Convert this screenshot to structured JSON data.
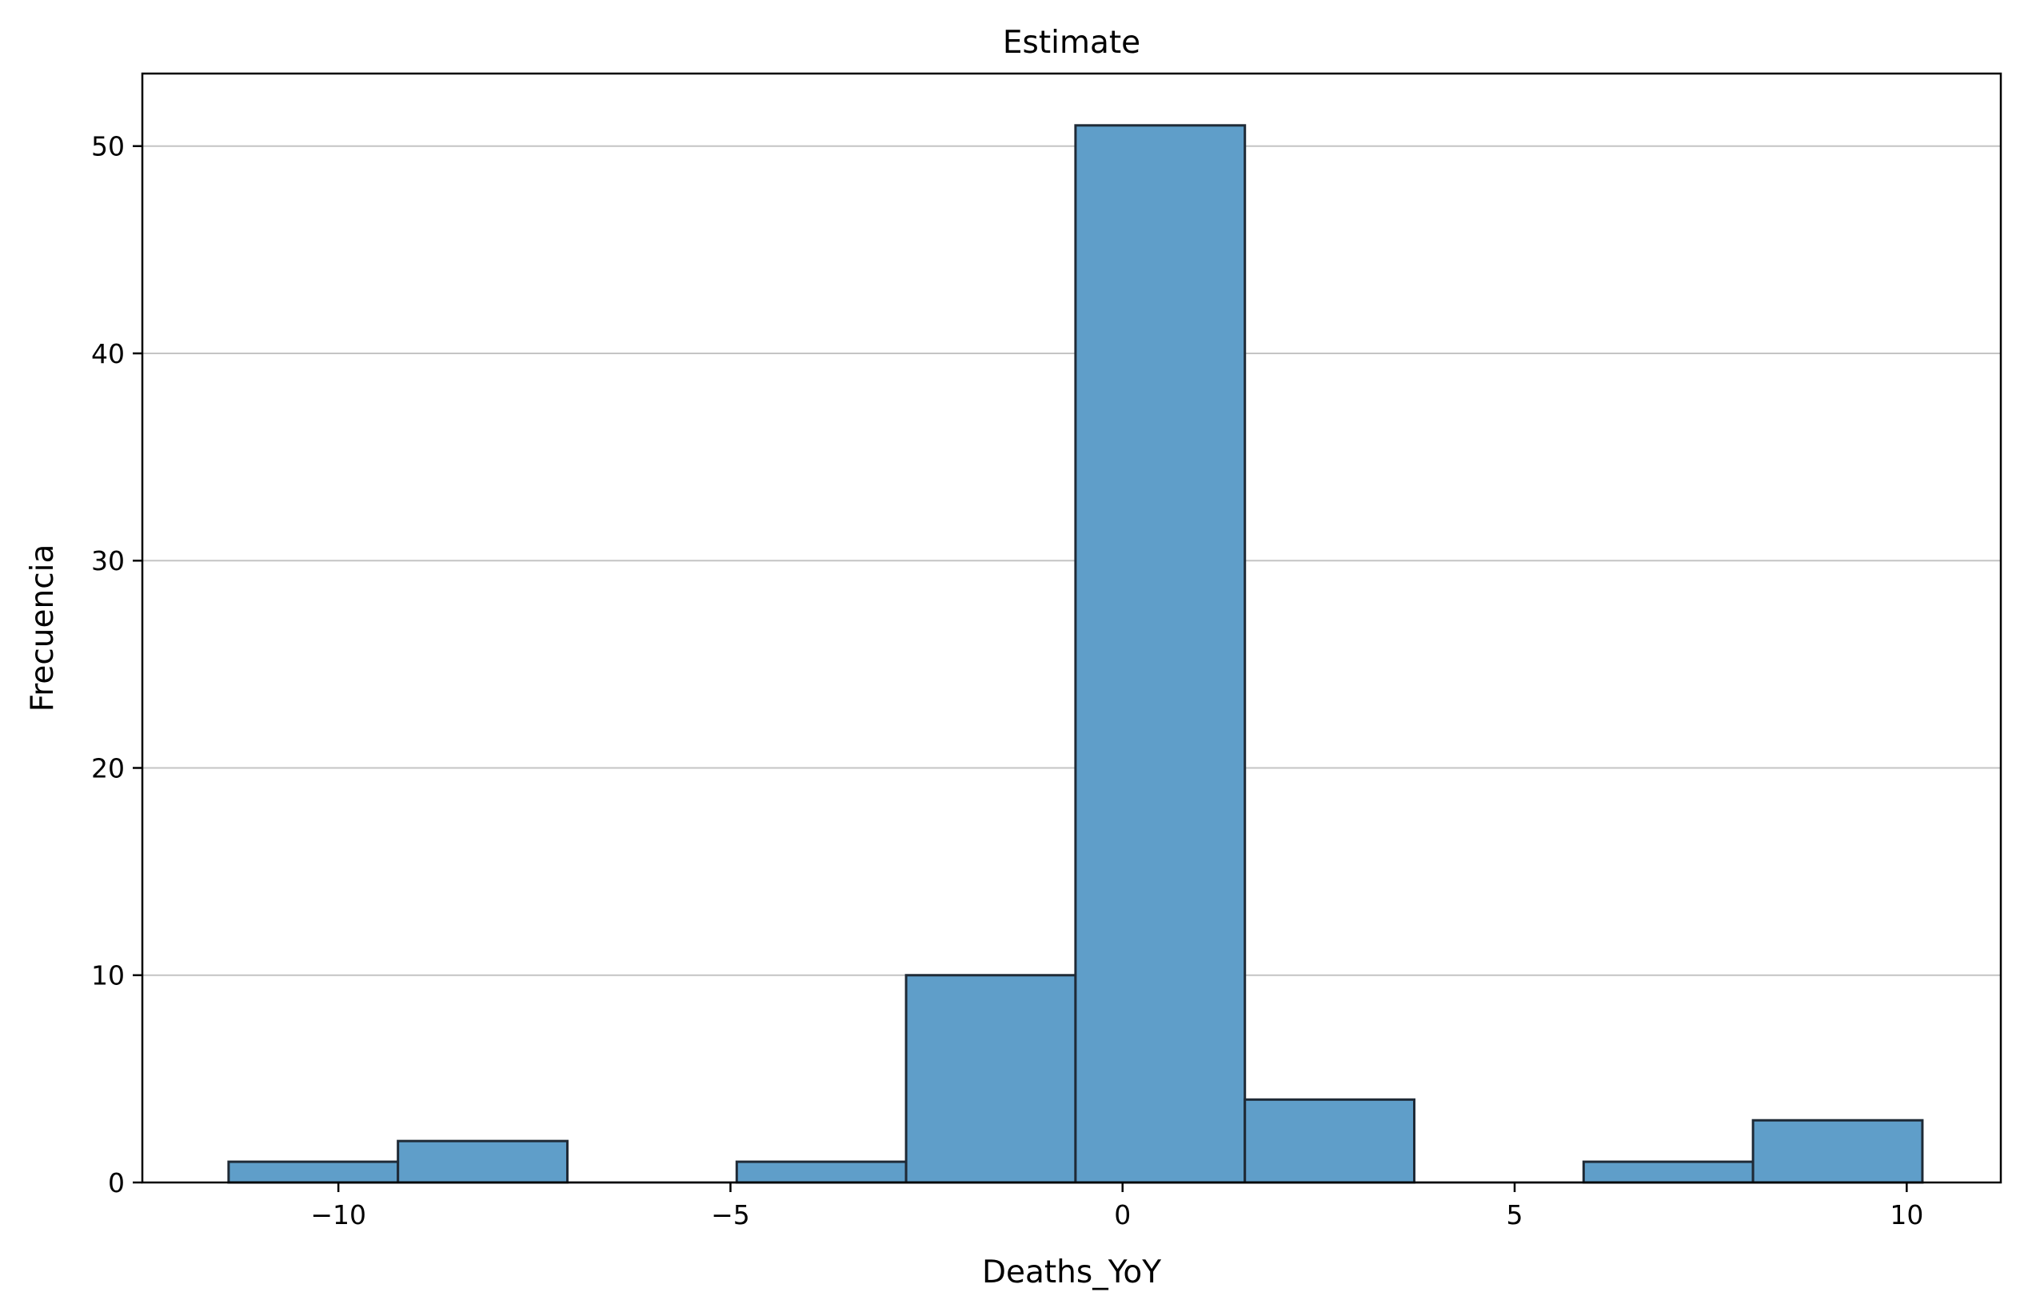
{
  "chart_data": {
    "type": "bar",
    "title": "Estimate",
    "xlabel": "Deaths_YoY",
    "ylabel": "Frecuencia",
    "xlim": [
      -12.5,
      11.2
    ],
    "ylim": [
      0,
      53.5
    ],
    "grid": "y",
    "bar_color": "#5f9ec9",
    "edge_color": "#1f2a36",
    "x_ticks": [
      {
        "value": -10,
        "label": "−10"
      },
      {
        "value": -5,
        "label": "−5"
      },
      {
        "value": 0,
        "label": "0"
      },
      {
        "value": 5,
        "label": "5"
      },
      {
        "value": 10,
        "label": "10"
      }
    ],
    "y_ticks": [
      {
        "value": 0,
        "label": "0"
      },
      {
        "value": 10,
        "label": "10"
      },
      {
        "value": 20,
        "label": "20"
      },
      {
        "value": 30,
        "label": "30"
      },
      {
        "value": 40,
        "label": "40"
      },
      {
        "value": 50,
        "label": "50"
      }
    ],
    "bins": [
      {
        "x0": -11.4,
        "x1": -9.24,
        "count": 1
      },
      {
        "x0": -9.24,
        "x1": -7.08,
        "count": 2
      },
      {
        "x0": -7.08,
        "x1": -4.92,
        "count": 0
      },
      {
        "x0": -4.92,
        "x1": -2.76,
        "count": 1
      },
      {
        "x0": -2.76,
        "x1": -0.6,
        "count": 10
      },
      {
        "x0": -0.6,
        "x1": 1.56,
        "count": 51
      },
      {
        "x0": 1.56,
        "x1": 3.72,
        "count": 4
      },
      {
        "x0": 3.72,
        "x1": 5.88,
        "count": 0
      },
      {
        "x0": 5.88,
        "x1": 8.04,
        "count": 1
      },
      {
        "x0": 8.04,
        "x1": 10.2,
        "count": 3
      }
    ]
  }
}
